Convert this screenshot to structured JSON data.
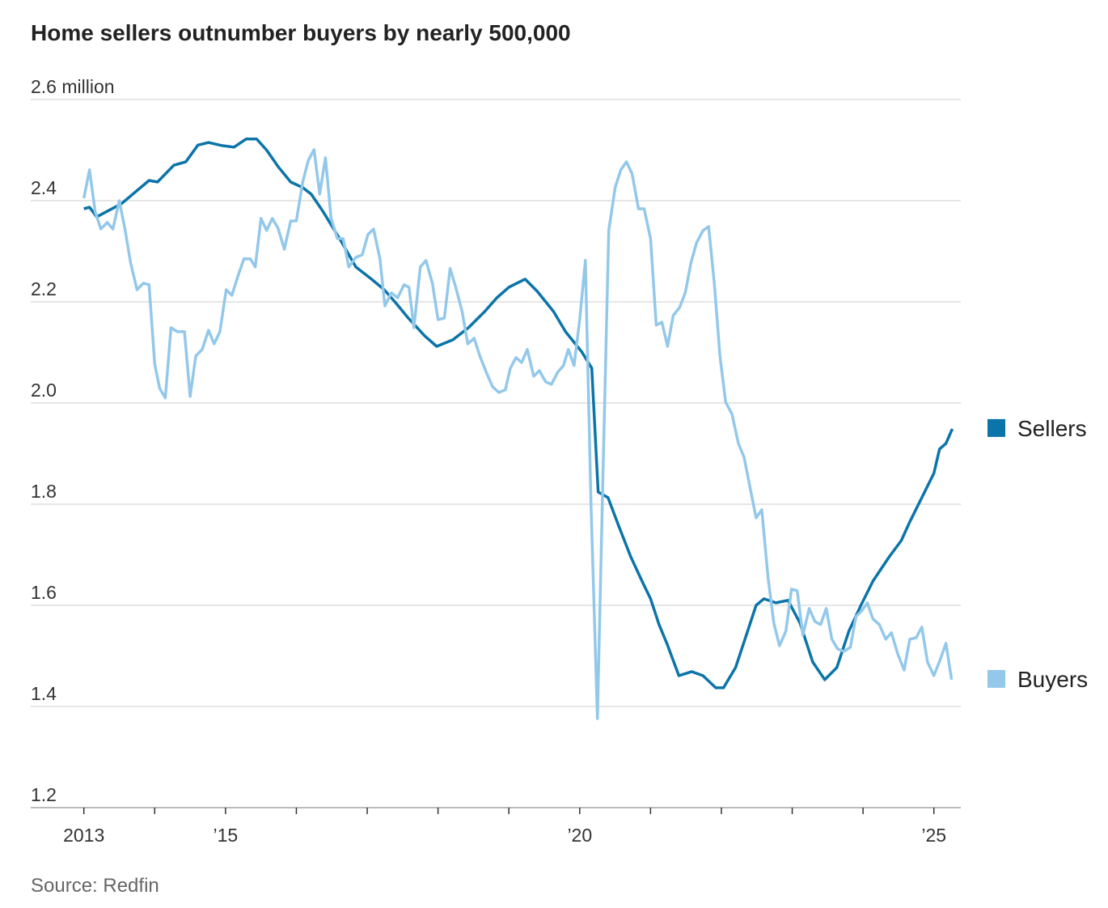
{
  "chart_data": {
    "type": "line",
    "title": "Home sellers outnumber buyers by nearly 500,000",
    "source": "Source: Redfin",
    "xlim": [
      2012.25,
      2025.38
    ],
    "xticks": [
      2013,
      {
        "value": 2015,
        "label": "’15"
      },
      {
        "value": 2020,
        "label": "’20"
      },
      {
        "value": 2025,
        "label": "’25"
      }
    ],
    "xminor_ticks": [
      2014,
      2016,
      2017,
      2018,
      2019,
      2021,
      2022,
      2023,
      2024
    ],
    "ylim": [
      1.2,
      2.6
    ],
    "yticks": [
      1.2,
      1.4,
      1.6,
      1.8,
      {
        "value": 2,
        "label": "2.0"
      },
      2.2,
      2.4,
      {
        "value": 2.6,
        "label": "2.6 million"
      }
    ],
    "grid": true,
    "series": [
      {
        "name": "Sellers",
        "color": "#0b74a8",
        "x": [
          2013.0,
          2013.08,
          2013.18,
          2013.53,
          2013.75,
          2013.92,
          2014.04,
          2014.27,
          2014.44,
          2014.61,
          2014.76,
          2014.95,
          2015.12,
          2015.29,
          2015.44,
          2015.58,
          2015.75,
          2015.92,
          2016.09,
          2016.21,
          2016.38,
          2016.61,
          2016.84,
          2017.06,
          2017.24,
          2017.41,
          2017.58,
          2017.81,
          2017.98,
          2018.21,
          2018.43,
          2018.66,
          2018.83,
          2019.0,
          2019.23,
          2019.4,
          2019.63,
          2019.8,
          2020.03,
          2020.17,
          2020.26,
          2020.4,
          2020.55,
          2020.72,
          2020.89,
          2021.0,
          2021.12,
          2021.23,
          2021.4,
          2021.58,
          2021.74,
          2021.92,
          2022.03,
          2022.2,
          2022.37,
          2022.49,
          2022.6,
          2022.77,
          2022.94,
          2023.11,
          2023.29,
          2023.46,
          2023.63,
          2023.8,
          2023.97,
          2024.14,
          2024.37,
          2024.54,
          2024.66,
          2024.83,
          2025.0,
          2025.08,
          2025.17,
          2025.26
        ],
        "values": [
          2.384,
          2.387,
          2.368,
          2.394,
          2.42,
          2.44,
          2.437,
          2.47,
          2.477,
          2.51,
          2.515,
          2.509,
          2.506,
          2.522,
          2.522,
          2.5,
          2.466,
          2.437,
          2.426,
          2.413,
          2.378,
          2.325,
          2.269,
          2.245,
          2.224,
          2.197,
          2.168,
          2.133,
          2.112,
          2.125,
          2.149,
          2.181,
          2.208,
          2.229,
          2.245,
          2.221,
          2.181,
          2.141,
          2.101,
          2.069,
          1.824,
          1.813,
          1.757,
          1.696,
          1.645,
          1.613,
          1.562,
          1.525,
          1.461,
          1.469,
          1.461,
          1.437,
          1.437,
          1.477,
          1.549,
          1.6,
          1.613,
          1.605,
          1.61,
          1.565,
          1.488,
          1.453,
          1.477,
          1.549,
          1.6,
          1.648,
          1.696,
          1.728,
          1.765,
          1.813,
          1.861,
          1.909,
          1.92,
          1.949
        ]
      },
      {
        "name": "Buyers",
        "color": "#93c8ea",
        "x": [
          2013.0,
          2013.08,
          2013.16,
          2013.24,
          2013.33,
          2013.41,
          2013.5,
          2013.58,
          2013.66,
          2013.75,
          2013.84,
          2013.92,
          2014.0,
          2014.07,
          2014.15,
          2014.23,
          2014.32,
          2014.42,
          2014.5,
          2014.58,
          2014.67,
          2014.76,
          2014.84,
          2014.92,
          2015.01,
          2015.09,
          2015.18,
          2015.26,
          2015.35,
          2015.42,
          2015.5,
          2015.58,
          2015.66,
          2015.74,
          2015.83,
          2015.92,
          2016.0,
          2016.09,
          2016.17,
          2016.25,
          2016.33,
          2016.41,
          2016.49,
          2016.58,
          2016.66,
          2016.74,
          2016.84,
          2016.93,
          2017.01,
          2017.09,
          2017.18,
          2017.25,
          2017.34,
          2017.43,
          2017.52,
          2017.59,
          2017.66,
          2017.75,
          2017.83,
          2017.92,
          2018.0,
          2018.09,
          2018.17,
          2018.25,
          2018.34,
          2018.42,
          2018.51,
          2018.59,
          2018.68,
          2018.77,
          2018.86,
          2018.95,
          2019.02,
          2019.1,
          2019.18,
          2019.26,
          2019.35,
          2019.43,
          2019.52,
          2019.6,
          2019.69,
          2019.77,
          2019.84,
          2019.92,
          2020.0,
          2020.08,
          2020.16,
          2020.25,
          2020.33,
          2020.41,
          2020.5,
          2020.58,
          2020.66,
          2020.74,
          2020.83,
          2020.91,
          2021.0,
          2021.08,
          2021.16,
          2021.24,
          2021.32,
          2021.41,
          2021.49,
          2021.57,
          2021.65,
          2021.74,
          2021.82,
          2021.9,
          2021.98,
          2022.06,
          2022.15,
          2022.24,
          2022.32,
          2022.41,
          2022.49,
          2022.57,
          2022.66,
          2022.74,
          2022.82,
          2022.91,
          2022.99,
          2023.07,
          2023.15,
          2023.24,
          2023.32,
          2023.4,
          2023.48,
          2023.56,
          2023.64,
          2023.73,
          2023.82,
          2023.9,
          2023.98,
          2024.06,
          2024.14,
          2024.23,
          2024.32,
          2024.4,
          2024.49,
          2024.58,
          2024.66,
          2024.75,
          2024.83,
          2024.91,
          2025.0,
          2025.09,
          2025.17,
          2025.25
        ],
        "values": [
          2.405,
          2.461,
          2.378,
          2.344,
          2.357,
          2.344,
          2.4,
          2.344,
          2.277,
          2.224,
          2.237,
          2.234,
          2.077,
          2.029,
          2.01,
          2.149,
          2.141,
          2.141,
          2.013,
          2.093,
          2.106,
          2.144,
          2.117,
          2.141,
          2.224,
          2.213,
          2.253,
          2.285,
          2.285,
          2.269,
          2.365,
          2.341,
          2.365,
          2.346,
          2.304,
          2.36,
          2.36,
          2.437,
          2.48,
          2.501,
          2.413,
          2.485,
          2.365,
          2.325,
          2.325,
          2.269,
          2.288,
          2.293,
          2.333,
          2.344,
          2.285,
          2.192,
          2.218,
          2.208,
          2.234,
          2.229,
          2.149,
          2.269,
          2.282,
          2.237,
          2.165,
          2.168,
          2.266,
          2.229,
          2.181,
          2.117,
          2.128,
          2.093,
          2.061,
          2.032,
          2.021,
          2.026,
          2.069,
          2.09,
          2.08,
          2.106,
          2.053,
          2.064,
          2.042,
          2.037,
          2.061,
          2.074,
          2.106,
          2.074,
          2.165,
          2.282,
          1.797,
          1.376,
          1.869,
          2.341,
          2.426,
          2.461,
          2.477,
          2.453,
          2.384,
          2.384,
          2.325,
          2.154,
          2.16,
          2.112,
          2.173,
          2.189,
          2.218,
          2.277,
          2.317,
          2.341,
          2.349,
          2.237,
          2.093,
          2.002,
          1.978,
          1.92,
          1.893,
          1.829,
          1.773,
          1.789,
          1.653,
          1.565,
          1.52,
          1.549,
          1.632,
          1.629,
          1.541,
          1.594,
          1.568,
          1.562,
          1.594,
          1.533,
          1.514,
          1.509,
          1.517,
          1.578,
          1.589,
          1.605,
          1.573,
          1.562,
          1.533,
          1.546,
          1.504,
          1.472,
          1.533,
          1.536,
          1.557,
          1.488,
          1.461,
          1.493,
          1.525,
          1.453
        ]
      }
    ]
  }
}
